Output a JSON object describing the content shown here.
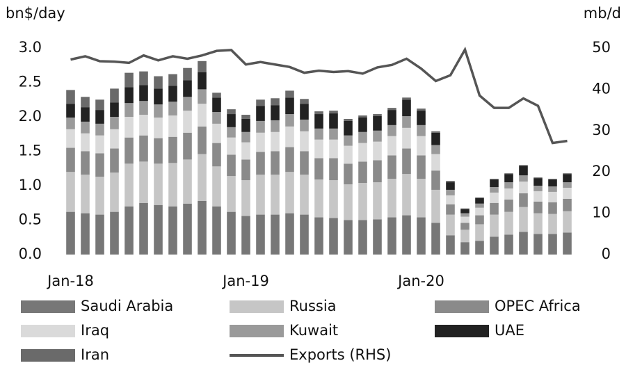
{
  "chart_data": {
    "type": "bar",
    "stacked": true,
    "y_label": "bn$/day",
    "y2_label": "mb/d",
    "categories": [
      "Jan-18",
      null,
      null,
      null,
      null,
      null,
      null,
      null,
      null,
      null,
      null,
      null,
      "Jan-19",
      null,
      null,
      null,
      null,
      null,
      null,
      null,
      null,
      null,
      null,
      null,
      "Jan-20",
      null,
      null,
      null,
      null,
      null,
      null,
      null,
      null,
      null,
      null
    ],
    "ylim": [
      0,
      3
    ],
    "yticks": [
      {
        "value": 0,
        "label": "0.0"
      },
      0.5,
      {
        "value": 1,
        "label": "1.0"
      },
      1.5,
      {
        "value": 2,
        "label": "2.0"
      },
      2.5,
      {
        "value": 3,
        "label": "3.0"
      }
    ],
    "y2lim": [
      0,
      50
    ],
    "y2ticks": [
      0,
      10,
      20,
      30,
      40,
      50
    ],
    "series": [
      {
        "name": "Saudi Arabia",
        "color": "#777777",
        "values": [
          0.62,
          0.6,
          0.58,
          0.62,
          0.7,
          0.75,
          0.72,
          0.7,
          0.74,
          0.78,
          0.7,
          0.62,
          0.56,
          0.58,
          0.58,
          0.6,
          0.58,
          0.54,
          0.53,
          0.5,
          0.5,
          0.51,
          0.54,
          0.57,
          0.54,
          0.46,
          0.28,
          0.18,
          0.2,
          0.26,
          0.29,
          0.33,
          0.3,
          0.3,
          0.32
        ]
      },
      {
        "name": "Russia",
        "color": "#c6c6c6",
        "values": [
          0.58,
          0.56,
          0.55,
          0.57,
          0.62,
          0.6,
          0.6,
          0.63,
          0.64,
          0.68,
          0.58,
          0.52,
          0.52,
          0.58,
          0.58,
          0.6,
          0.58,
          0.55,
          0.55,
          0.52,
          0.54,
          0.54,
          0.56,
          0.6,
          0.56,
          0.48,
          0.3,
          0.18,
          0.24,
          0.32,
          0.33,
          0.36,
          0.3,
          0.29,
          0.31
        ]
      },
      {
        "name": "OPEC Africa",
        "color": "#8a8a8a",
        "values": [
          0.35,
          0.34,
          0.34,
          0.35,
          0.38,
          0.38,
          0.37,
          0.38,
          0.39,
          0.4,
          0.34,
          0.31,
          0.3,
          0.33,
          0.34,
          0.36,
          0.34,
          0.31,
          0.32,
          0.3,
          0.31,
          0.32,
          0.34,
          0.37,
          0.34,
          0.28,
          0.15,
          0.1,
          0.13,
          0.17,
          0.18,
          0.2,
          0.17,
          0.17,
          0.18
        ]
      },
      {
        "name": "Iraq",
        "color": "#dadada",
        "values": [
          0.27,
          0.26,
          0.26,
          0.28,
          0.3,
          0.3,
          0.3,
          0.31,
          0.32,
          0.33,
          0.28,
          0.25,
          0.25,
          0.28,
          0.28,
          0.3,
          0.29,
          0.27,
          0.27,
          0.26,
          0.27,
          0.27,
          0.28,
          0.3,
          0.28,
          0.24,
          0.13,
          0.09,
          0.11,
          0.15,
          0.16,
          0.17,
          0.15,
          0.15,
          0.16
        ]
      },
      {
        "name": "Kuwait",
        "color": "#9a9a9a",
        "values": [
          0.17,
          0.17,
          0.17,
          0.18,
          0.2,
          0.2,
          0.19,
          0.2,
          0.2,
          0.21,
          0.17,
          0.15,
          0.15,
          0.17,
          0.17,
          0.18,
          0.17,
          0.16,
          0.16,
          0.15,
          0.16,
          0.16,
          0.16,
          0.17,
          0.16,
          0.13,
          0.08,
          0.05,
          0.06,
          0.08,
          0.09,
          0.09,
          0.08,
          0.08,
          0.08
        ]
      },
      {
        "name": "UAE",
        "color": "#222222",
        "values": [
          0.2,
          0.21,
          0.2,
          0.21,
          0.23,
          0.23,
          0.23,
          0.23,
          0.24,
          0.25,
          0.21,
          0.19,
          0.19,
          0.22,
          0.22,
          0.24,
          0.23,
          0.21,
          0.22,
          0.21,
          0.21,
          0.21,
          0.22,
          0.24,
          0.21,
          0.18,
          0.11,
          0.06,
          0.08,
          0.11,
          0.12,
          0.14,
          0.11,
          0.1,
          0.12
        ]
      },
      {
        "name": "Iran",
        "color": "#6a6a6a",
        "values": [
          0.2,
          0.15,
          0.15,
          0.2,
          0.21,
          0.2,
          0.18,
          0.17,
          0.18,
          0.16,
          0.07,
          0.07,
          0.06,
          0.09,
          0.1,
          0.1,
          0.07,
          0.04,
          0.04,
          0.03,
          0.03,
          0.03,
          0.03,
          0.03,
          0.03,
          0.02,
          0.02,
          0.01,
          0.01,
          0.01,
          0.01,
          0.01,
          0.01,
          0.01,
          0.01
        ]
      },
      {
        "name": "Exports (RHS)",
        "color": "#555555",
        "type": "line",
        "axis": "y2",
        "values": [
          47.2,
          48,
          46.8,
          46.7,
          46.4,
          48.2,
          47,
          48,
          47.4,
          48.2,
          49.3,
          49.5,
          46,
          46.6,
          46,
          45.4,
          44,
          44.5,
          44.2,
          44.4,
          43.8,
          45.3,
          45.9,
          47.4,
          45,
          42,
          43.4,
          49.6,
          38.5,
          35.5,
          35.5,
          37.8,
          36,
          27,
          27.5
        ]
      }
    ]
  }
}
